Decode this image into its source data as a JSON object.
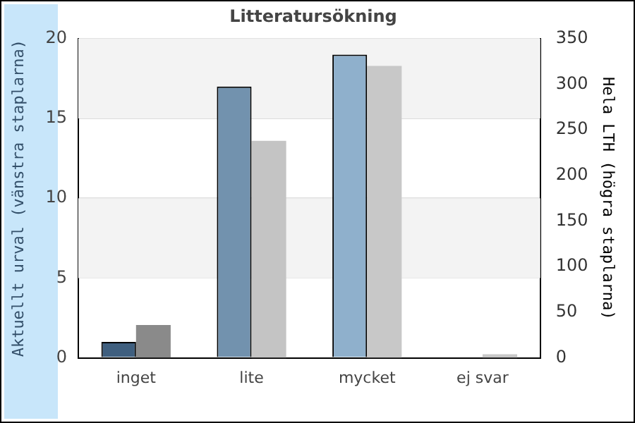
{
  "chart_data": {
    "type": "bar",
    "title": "Litteratursökning",
    "ylabel": "Aktuellt urval (vänstra staplarna)",
    "y2label": "Hela LTH (högra staplarna)",
    "categories": [
      "inget",
      "lite",
      "mycket",
      "ej svar"
    ],
    "series": [
      {
        "colors": [
          "#3f5f7f",
          "#7292ae",
          "#8fb0cc",
          "#8fb0cc"
        ],
        "values": [
          1,
          17,
          19,
          0
        ]
      },
      {
        "axis": "y2",
        "colors": [
          "#8a8a8a",
          "#c4c4c4",
          "#c8c8c8",
          "#c8c8c8"
        ],
        "values": [
          36,
          238,
          320,
          4
        ]
      }
    ],
    "ylim": [
      0,
      20
    ],
    "yticks": [
      0,
      5,
      10,
      15,
      20
    ],
    "y2lim": [
      0,
      350
    ],
    "y2ticks": [
      0,
      50,
      100,
      150,
      200,
      250,
      300,
      350
    ],
    "grid": "y",
    "legend": false
  }
}
